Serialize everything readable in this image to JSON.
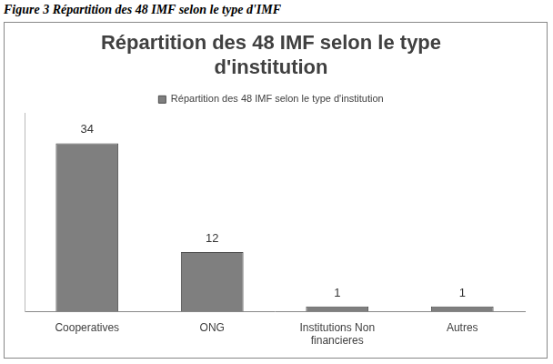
{
  "figure_caption": "Figure 3 Répartition des 48 IMF selon le type d'IMF",
  "chart_data": {
    "type": "bar",
    "title": "Répartition des 48 IMF selon le type d'institution",
    "categories": [
      "Cooperatives",
      "ONG",
      "Institutions Non financieres",
      "Autres"
    ],
    "series": [
      {
        "name": "Répartition des 48 IMF selon le type d'institution",
        "color": "#7f7f7f",
        "values": [
          34,
          12,
          1,
          1
        ]
      }
    ],
    "ylim": [
      0,
      40
    ],
    "grid": false,
    "legend": "top",
    "data_labels": true,
    "tick_labels": "x"
  }
}
